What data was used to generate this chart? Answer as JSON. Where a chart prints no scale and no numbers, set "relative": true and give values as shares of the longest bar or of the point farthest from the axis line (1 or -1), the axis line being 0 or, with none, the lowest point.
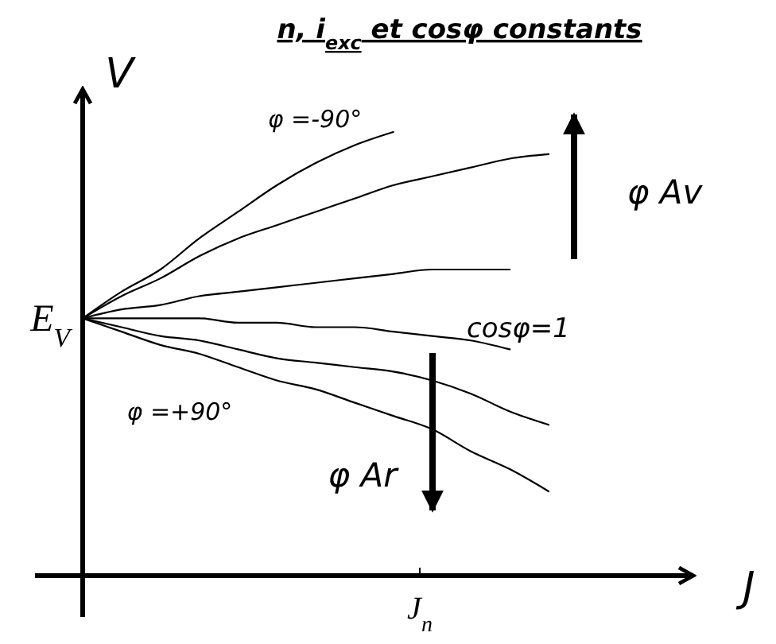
{
  "chart_data": {
    "type": "line",
    "title": "n, i$_{exc}$ et cosφ constants",
    "xlabel": "J",
    "ylabel": "V",
    "relative": true,
    "categories": [
      null,
      null,
      null,
      null,
      null,
      null,
      null,
      null,
      null,
      null,
      null,
      null,
      null
    ],
    "series": [
      {
        "name": "φ =-90°",
        "color": "#000000",
        "values": [
          0.58,
          0.64,
          0.69,
          0.76,
          0.82,
          0.88,
          0.93,
          0.97,
          1.0,
          null,
          null,
          null,
          null
        ]
      },
      {
        "color": "#000000",
        "values": [
          0.58,
          0.63,
          0.67,
          0.72,
          0.76,
          0.79,
          0.82,
          0.85,
          0.88,
          0.9,
          0.92,
          0.94,
          0.95
        ]
      },
      {
        "color": "#000000",
        "values": [
          0.58,
          0.6,
          0.61,
          0.63,
          0.64,
          0.65,
          0.66,
          0.67,
          0.68,
          0.69,
          0.69,
          0.69,
          null
        ]
      },
      {
        "name": "cosφ=1",
        "color": "#000000",
        "values": [
          0.58,
          0.58,
          0.58,
          0.58,
          0.57,
          0.57,
          0.56,
          0.56,
          0.55,
          0.54,
          0.53,
          0.51,
          null
        ]
      },
      {
        "color": "#000000",
        "values": [
          0.58,
          0.56,
          0.54,
          0.53,
          0.51,
          0.49,
          0.48,
          0.47,
          0.46,
          0.44,
          0.41,
          0.37,
          0.34
        ]
      },
      {
        "name": "φ =+90°",
        "color": "#000000",
        "values": [
          0.58,
          0.55,
          0.52,
          0.5,
          0.47,
          0.44,
          0.42,
          0.39,
          0.36,
          0.33,
          0.28,
          0.24,
          0.19
        ]
      }
    ],
    "annotations": [
      "E$_{V}$",
      "φ Av",
      "φ Ar",
      "J$_{n}$"
    ]
  }
}
